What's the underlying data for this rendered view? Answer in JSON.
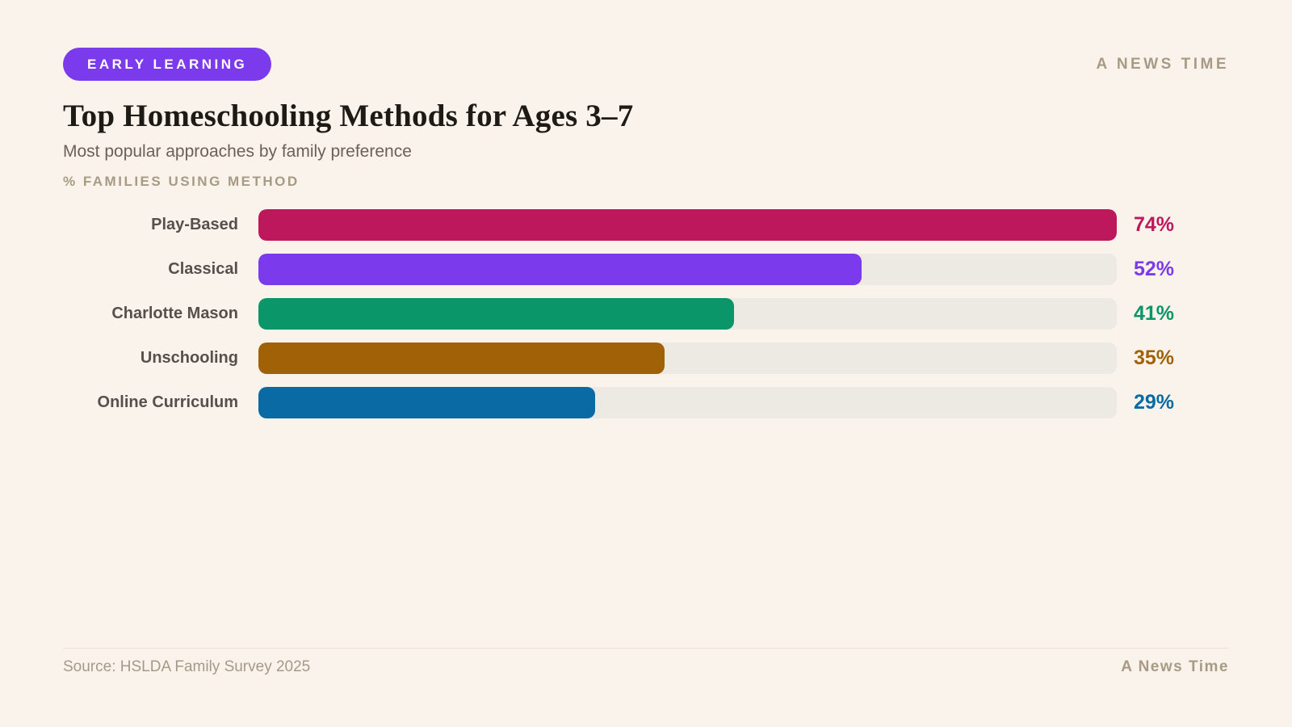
{
  "header": {
    "badge": "EARLY LEARNING",
    "brand": "A NEWS TIME"
  },
  "chart": {
    "title": "Top Homeschooling Methods for Ages 3–7",
    "subtitle": "Most popular approaches by family preference",
    "unit_label": "% FAMILIES USING METHOD"
  },
  "chart_data": {
    "type": "bar",
    "orientation": "horizontal",
    "title": "Top Homeschooling Methods for Ages 3–7",
    "subtitle": "Most popular approaches by family preference",
    "xlabel": "% families using method",
    "categories": [
      "Play-Based",
      "Classical",
      "Charlotte Mason",
      "Unschooling",
      "Online Curriculum"
    ],
    "values": [
      74,
      52,
      41,
      35,
      29
    ],
    "value_labels": [
      "74%",
      "52%",
      "41%",
      "35%",
      "29%"
    ],
    "value_suffix": "%",
    "bar_colors": [
      "#BE185D",
      "#7C3AED",
      "#0A9669",
      "#A16207",
      "#0A6AA3"
    ],
    "track_color": "#EDE9E3",
    "xlim": [
      0,
      74
    ],
    "grid": false,
    "legend": false
  },
  "footer": {
    "source": "Source: HSLDA Family Survey 2025",
    "brand": "A News Time"
  },
  "colors": {
    "background": "#F9F3EB",
    "badge_background": "#7C3AED",
    "badge_text": "#FFFFFF",
    "title_text": "#1E1A16",
    "subtitle_text": "#6B6157",
    "muted_text": "#A89B85",
    "label_text": "#57504A",
    "divider": "#E7E0D3"
  }
}
